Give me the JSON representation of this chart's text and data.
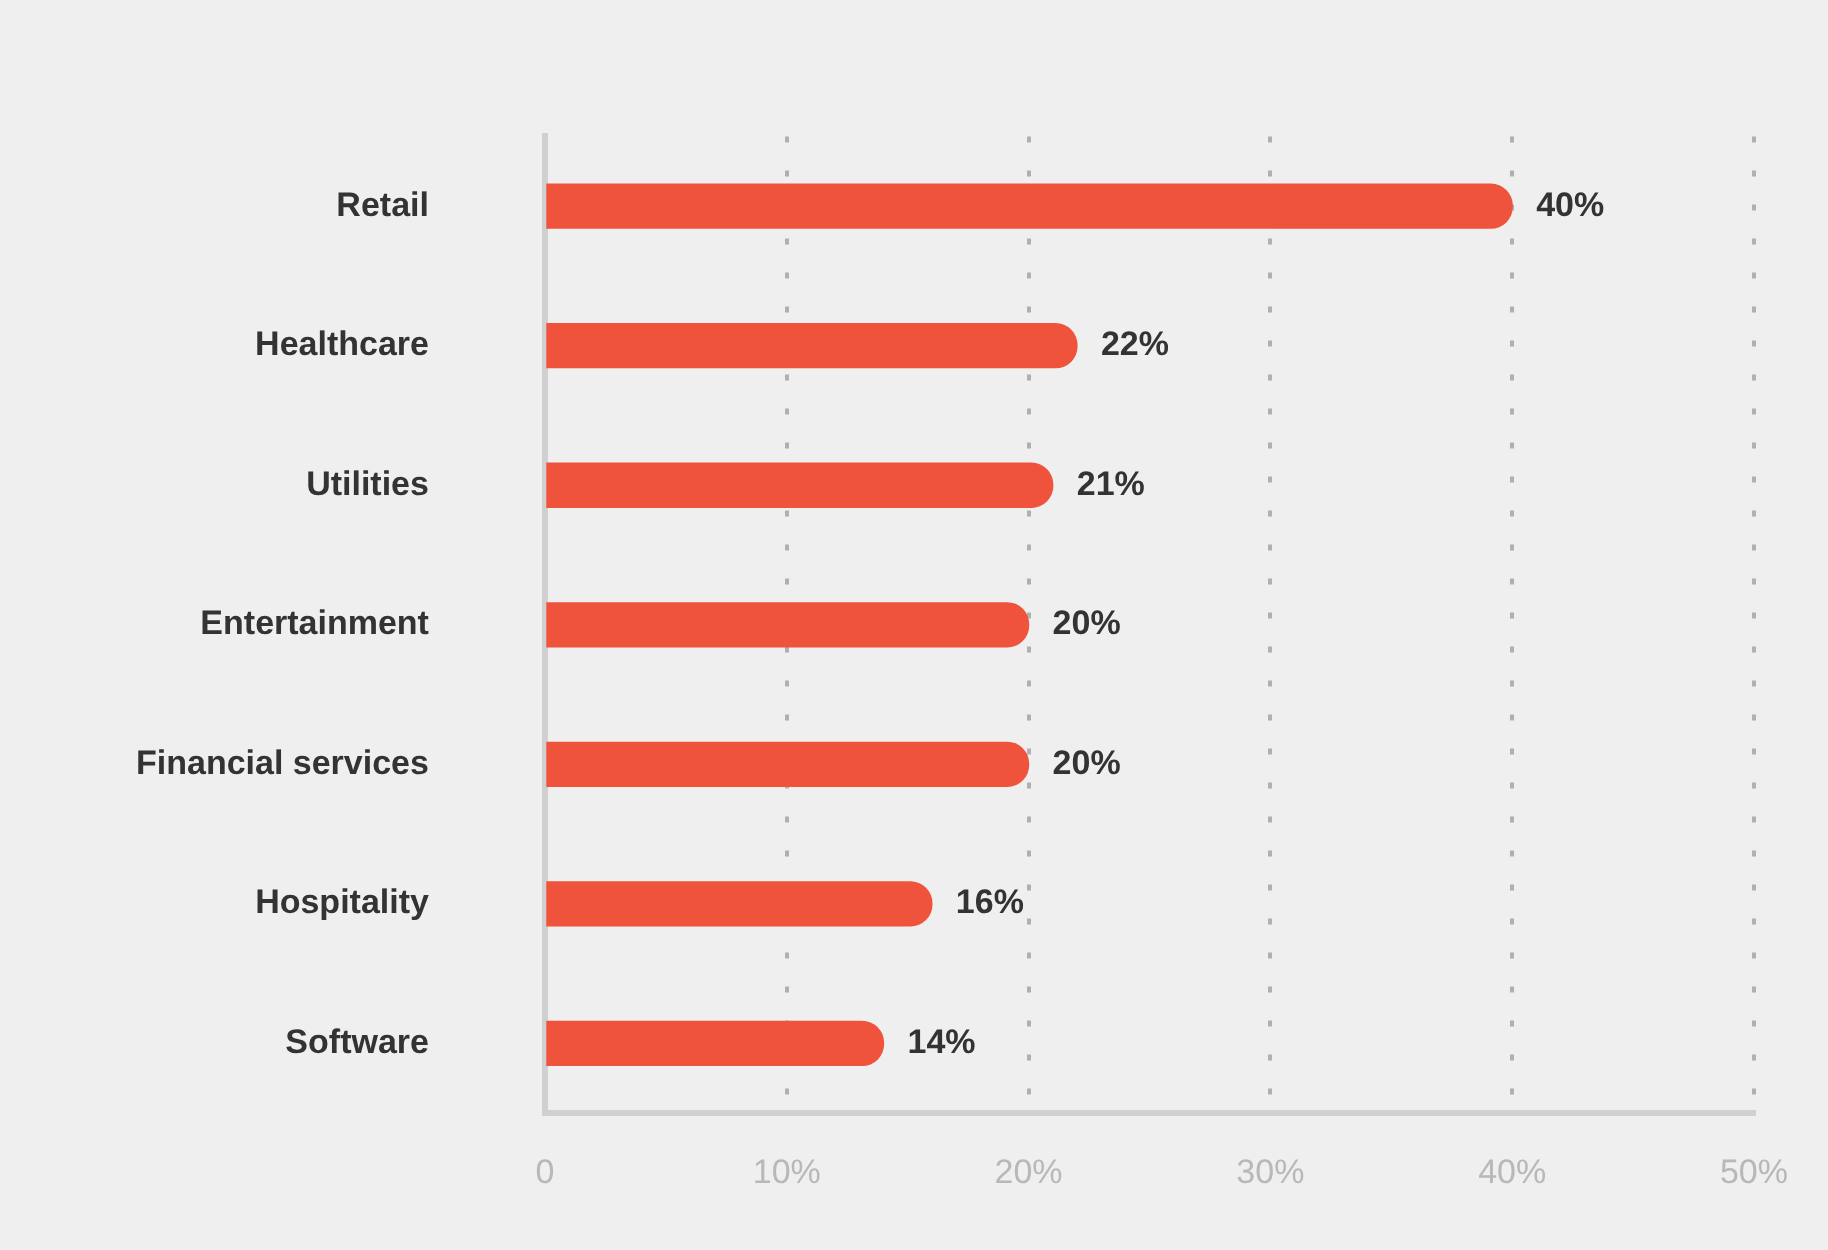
{
  "chart_data": {
    "type": "bar",
    "orientation": "horizontal",
    "categories": [
      "Retail",
      "Healthcare",
      "Utilities",
      "Entertainment",
      "Financial services",
      "Hospitality",
      "Software"
    ],
    "values": [
      40,
      22,
      21,
      20,
      20,
      16,
      14
    ],
    "color": "#f0533b",
    "value_labels": [
      "40%",
      "22%",
      "21%",
      "20%",
      "20%",
      "16%",
      "14%"
    ],
    "xlim": [
      0,
      50
    ],
    "xticks": [
      0,
      {
        "value": 10,
        "label": "10%"
      },
      {
        "value": 20,
        "label": "20%"
      },
      {
        "value": 30,
        "label": "30%"
      },
      {
        "value": 40,
        "label": "40%"
      },
      {
        "value": 50,
        "label": "50%"
      }
    ],
    "grid": "x",
    "legend": false
  }
}
